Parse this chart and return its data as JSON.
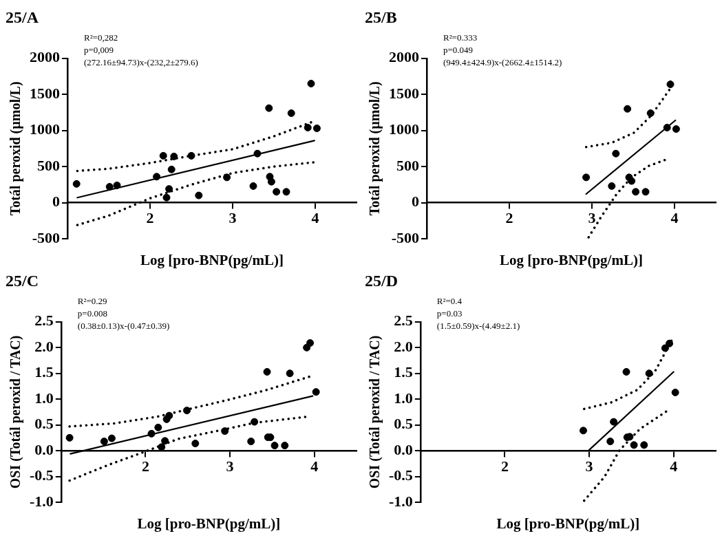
{
  "chart_data": [
    {
      "type": "scatter",
      "title": "25/A",
      "xlabel": "Log [pro-BNP(pg/mL)]",
      "ylabel": "Totál peroxid (µmol/L)",
      "annotations": [
        "R²=0,282",
        "p=0,009",
        "(272.16±94.73)x-(232,2±279.6)"
      ],
      "xlim": [
        1,
        4.5
      ],
      "xticks": [
        2,
        3,
        4
      ],
      "ylim": [
        -500,
        2000
      ],
      "yticks": [
        -500,
        0,
        500,
        1000,
        1500,
        2000
      ],
      "series": [
        {
          "type": "scatter",
          "color": "#000000",
          "marker": "circle",
          "x": [
            1.11,
            1.51,
            1.6,
            2.08,
            2.16,
            2.2,
            2.23,
            2.26,
            2.29,
            2.5,
            2.59,
            2.93,
            3.25,
            3.3,
            3.44,
            3.45,
            3.47,
            3.53,
            3.65,
            3.71,
            3.91,
            3.95,
            4.02
          ],
          "values": [
            260,
            220,
            240,
            360,
            650,
            70,
            190,
            460,
            640,
            650,
            100,
            350,
            230,
            680,
            1310,
            360,
            290,
            150,
            150,
            1240,
            1040,
            1650,
            1030
          ]
        },
        {
          "type": "line",
          "color": "#000000",
          "marker": "none",
          "line_style": "solid",
          "x": [
            1.12,
            3.99
          ],
          "values": [
            70,
            860
          ]
        },
        {
          "type": "line",
          "color": "#000000",
          "marker": "none",
          "line_style": "dotted",
          "x": [
            1.12,
            1.5,
            2,
            2.5,
            3,
            3.5,
            3.99
          ],
          "values": [
            440,
            470,
            550,
            650,
            740,
            920,
            1130
          ]
        },
        {
          "type": "line",
          "color": "#000000",
          "marker": "none",
          "line_style": "dotted",
          "x": [
            1.12,
            1.5,
            2,
            2.5,
            3,
            3.5,
            3.99
          ],
          "values": [
            -310,
            -180,
            60,
            250,
            410,
            500,
            560
          ]
        }
      ]
    },
    {
      "type": "scatter",
      "title": "25/B",
      "xlabel": "Log [pro-BNP(pg/mL)]",
      "ylabel": "Totál peroxid (µmol/L)",
      "annotations": [
        "R²=0.333",
        "p=0.049",
        "(949.4±424.9)x-(2662.4±1514.2)"
      ],
      "xlim": [
        1,
        4.5
      ],
      "xticks": [
        2,
        3,
        4
      ],
      "ylim": [
        -500,
        2000
      ],
      "yticks": [
        -500,
        0,
        500,
        1000,
        1500,
        2000
      ],
      "series": [
        {
          "type": "scatter",
          "color": "#000000",
          "marker": "circle",
          "x": [
            2.93,
            3.24,
            3.29,
            3.43,
            3.45,
            3.48,
            3.53,
            3.65,
            3.71,
            3.91,
            3.95,
            4.02
          ],
          "values": [
            350,
            230,
            680,
            1300,
            350,
            300,
            150,
            150,
            1240,
            1040,
            1640,
            1020
          ]
        },
        {
          "type": "line",
          "color": "#000000",
          "marker": "none",
          "line_style": "solid",
          "x": [
            2.93,
            4.01
          ],
          "values": [
            120,
            1140
          ]
        },
        {
          "type": "line",
          "color": "#000000",
          "marker": "none",
          "line_style": "dotted",
          "x": [
            2.93,
            3.24,
            3.51,
            3.72,
            3.96
          ],
          "values": [
            770,
            830,
            970,
            1210,
            1600
          ]
        },
        {
          "type": "line",
          "color": "#000000",
          "marker": "none",
          "line_style": "dotted",
          "x": [
            2.96,
            3.11,
            3.3,
            3.48,
            3.69,
            3.93
          ],
          "values": [
            -480,
            -200,
            120,
            350,
            510,
            610
          ]
        }
      ]
    },
    {
      "type": "scatter",
      "title": "25/C",
      "xlabel": "Log [pro-BNP(pg/mL)]",
      "ylabel": "OSI (Totál peroxid / TAC)",
      "annotations": [
        "R²=0.29",
        "p=0.008",
        "(0.38±0.13)x-(0.47±0.39)"
      ],
      "xlim": [
        1,
        4.5
      ],
      "xticks": [
        2,
        3,
        4
      ],
      "ylim": [
        -1,
        2.5
      ],
      "yticks": [
        {
          "value": -1,
          "label": "-1.0"
        },
        {
          "value": -0.5,
          "label": "-0.5"
        },
        {
          "value": 0,
          "label": "0.0"
        },
        {
          "value": 0.5,
          "label": "0.5"
        },
        {
          "value": 1,
          "label": "1.0"
        },
        {
          "value": 1.5,
          "label": "1.5"
        },
        {
          "value": 2,
          "label": "2.0"
        },
        {
          "value": 2.5,
          "label": "2.5"
        }
      ],
      "series": [
        {
          "type": "scatter",
          "color": "#000000",
          "marker": "circle",
          "x": [
            1.1,
            1.51,
            1.6,
            2.07,
            2.15,
            2.19,
            2.23,
            2.25,
            2.28,
            2.49,
            2.59,
            2.94,
            3.25,
            3.29,
            3.44,
            3.45,
            3.48,
            3.53,
            3.65,
            3.71,
            3.91,
            3.95,
            4.02
          ],
          "values": [
            0.25,
            0.18,
            0.24,
            0.33,
            0.45,
            0.07,
            0.19,
            0.61,
            0.68,
            0.78,
            0.14,
            0.38,
            0.18,
            0.56,
            1.53,
            0.26,
            0.26,
            0.1,
            0.1,
            1.5,
            2,
            2.09,
            1.14
          ]
        },
        {
          "type": "line",
          "color": "#000000",
          "marker": "none",
          "line_style": "solid",
          "x": [
            1.11,
            3.98
          ],
          "values": [
            -0.06,
            1.06
          ]
        },
        {
          "type": "line",
          "color": "#000000",
          "marker": "none",
          "line_style": "dotted",
          "x": [
            1.1,
            1.63,
            2.14,
            2.6,
            2.99,
            3.44,
            3.95
          ],
          "values": [
            0.47,
            0.53,
            0.66,
            0.84,
            0.99,
            1.18,
            1.44
          ]
        },
        {
          "type": "line",
          "color": "#000000",
          "marker": "none",
          "line_style": "dotted",
          "x": [
            1.1,
            1.57,
            1.99,
            2.39,
            2.84,
            3.29,
            3.92
          ],
          "values": [
            -0.58,
            -0.27,
            -0.02,
            0.23,
            0.38,
            0.54,
            0.66
          ]
        }
      ]
    },
    {
      "type": "scatter",
      "title": "25/D",
      "xlabel": "Log [pro-BNP(pg/mL)]",
      "ylabel": "OSI (Totál peroxid / TAC)",
      "annotations": [
        "R²=0.4",
        "p=0.03",
        "(1.5±0.59)x-(4.49±2.1)"
      ],
      "xlim": [
        1,
        4.5
      ],
      "xticks": [
        2,
        3,
        4
      ],
      "ylim": [
        -1,
        2.5
      ],
      "yticks": [
        {
          "value": -1,
          "label": "-1.0"
        },
        {
          "value": -0.5,
          "label": "-0.5"
        },
        {
          "value": 0,
          "label": "0.0"
        },
        {
          "value": 0.5,
          "label": "0.5"
        },
        {
          "value": 1,
          "label": "1.0"
        },
        {
          "value": 1.5,
          "label": "1.5"
        },
        {
          "value": 2,
          "label": "2.0"
        },
        {
          "value": 2.5,
          "label": "2.5"
        }
      ],
      "series": [
        {
          "type": "scatter",
          "color": "#000000",
          "marker": "circle",
          "x": [
            2.93,
            3.25,
            3.29,
            3.44,
            3.45,
            3.48,
            3.53,
            3.65,
            3.71,
            3.9,
            3.95,
            4.02
          ],
          "values": [
            0.39,
            0.18,
            0.56,
            1.53,
            0.26,
            0.27,
            0.11,
            0.11,
            1.5,
            1.99,
            2.08,
            1.13
          ]
        },
        {
          "type": "line",
          "color": "#000000",
          "marker": "none",
          "line_style": "solid",
          "x": [
            2.99,
            4
          ],
          "values": [
            0,
            1.53
          ]
        },
        {
          "type": "line",
          "color": "#000000",
          "marker": "none",
          "line_style": "dotted",
          "x": [
            2.94,
            3.27,
            3.57,
            3.78,
            4
          ],
          "values": [
            0.81,
            0.94,
            1.18,
            1.54,
            2.21
          ]
        },
        {
          "type": "line",
          "color": "#000000",
          "marker": "none",
          "line_style": "dotted",
          "x": [
            2.94,
            3.18,
            3.36,
            3.6,
            3.93
          ],
          "values": [
            -0.97,
            -0.51,
            0.01,
            0.42,
            0.78
          ]
        }
      ]
    }
  ]
}
